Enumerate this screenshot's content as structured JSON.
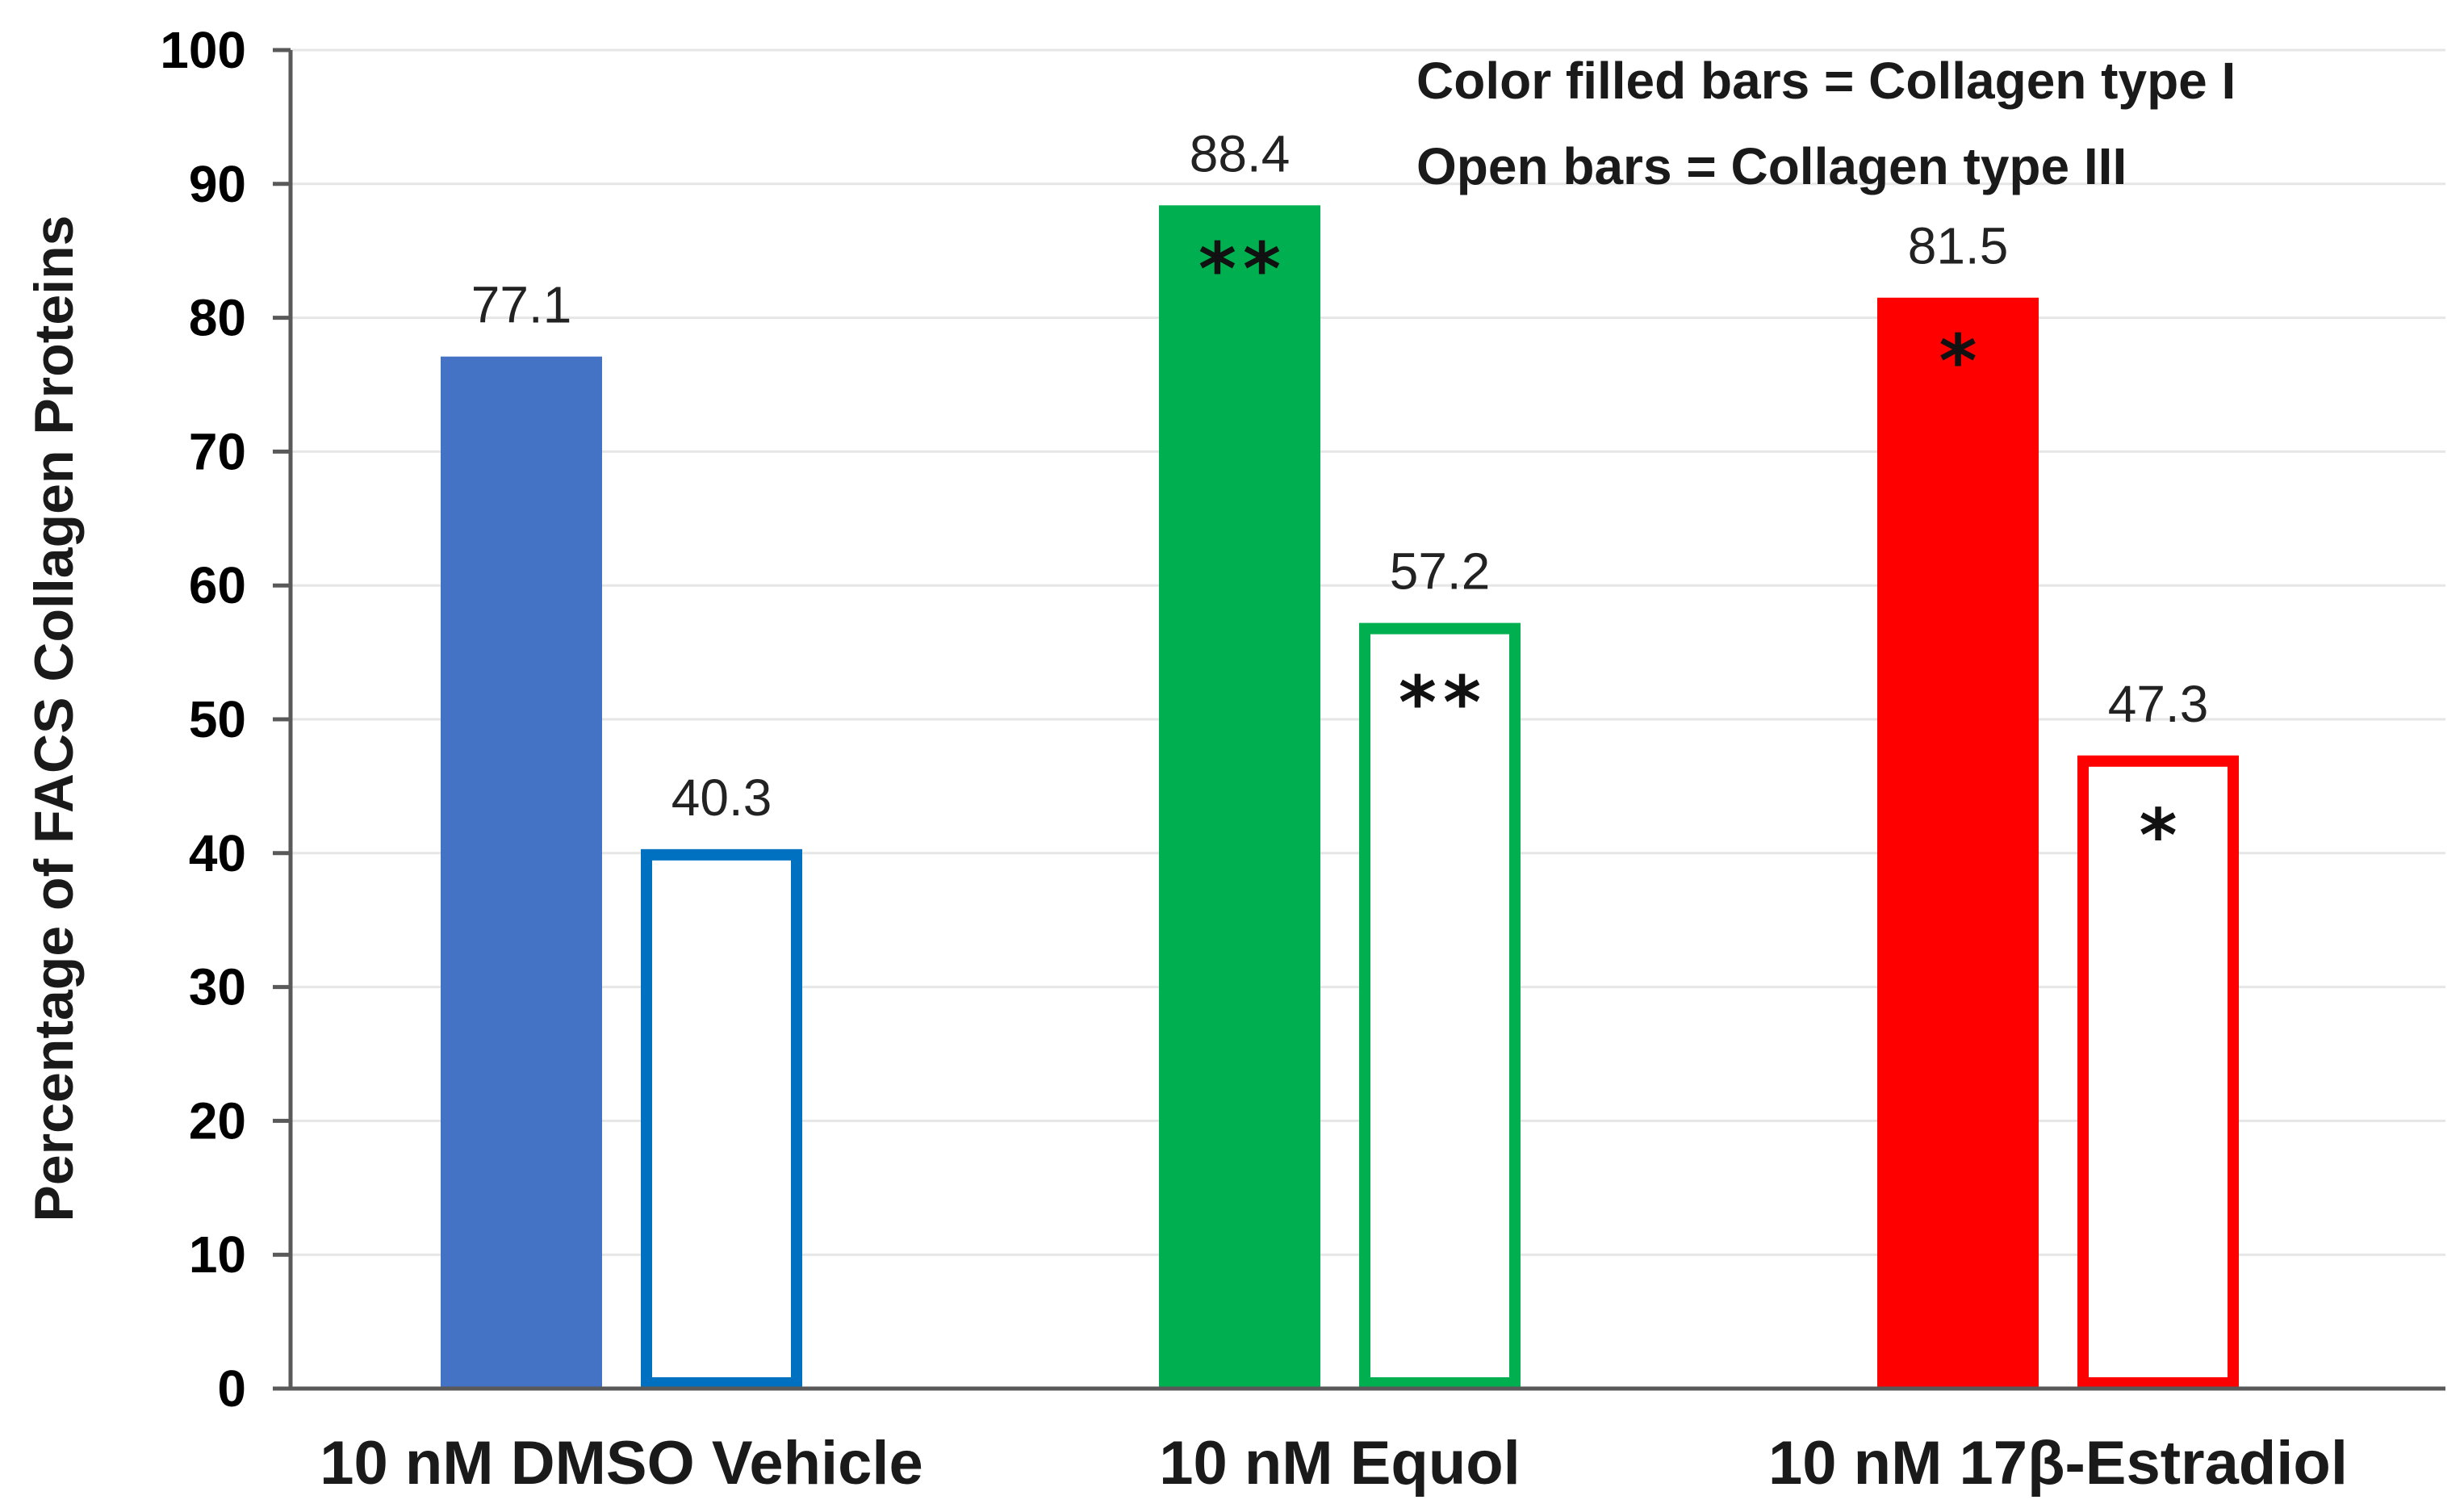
{
  "chart_data": {
    "type": "bar",
    "title": "",
    "ylabel": "Percentage of FACS Collagen Proteins",
    "xlabel": "",
    "ylim": [
      0,
      100
    ],
    "yticks": [
      0,
      10,
      20,
      30,
      40,
      50,
      60,
      70,
      80,
      90,
      100
    ],
    "grid": true,
    "categories": [
      "10 nM DMSO Vehicle",
      "10 nM Equol",
      "10 nM 17β-Estradiol"
    ],
    "category_colors": [
      "#4472C4",
      "#00B050",
      "#FF0000"
    ],
    "open_bar_colors": [
      "#0070C0",
      "#00B050",
      "#FF0000"
    ],
    "series": [
      {
        "name": "Collagen type I",
        "style": "filled",
        "values": [
          77.1,
          88.4,
          81.5
        ],
        "value_labels": [
          "77.1",
          "88.4",
          "81.5"
        ],
        "significance": [
          "",
          "**",
          "*"
        ]
      },
      {
        "name": "Collagen type III",
        "style": "open",
        "values": [
          40.3,
          57.2,
          47.3
        ],
        "value_labels": [
          "40.3",
          "57.2",
          "47.3"
        ],
        "significance": [
          "",
          "**",
          "*"
        ]
      }
    ],
    "legend": {
      "position": "top-right",
      "lines": [
        "Color filled bars = Collagen type I",
        "Open bars = Collagen type III"
      ]
    }
  }
}
